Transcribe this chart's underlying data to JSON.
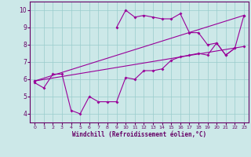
{
  "xlabel": "Windchill (Refroidissement éolien,°C)",
  "bg_color": "#cce8e8",
  "line_color": "#990099",
  "xlim": [
    -0.5,
    23.5
  ],
  "ylim": [
    3.5,
    10.5
  ],
  "xticks": [
    0,
    1,
    2,
    3,
    4,
    5,
    6,
    7,
    8,
    9,
    10,
    11,
    12,
    13,
    14,
    15,
    16,
    17,
    18,
    19,
    20,
    21,
    22,
    23
  ],
  "yticks": [
    4,
    5,
    6,
    7,
    8,
    9,
    10
  ],
  "series": [
    [
      5.8,
      5.5,
      6.3,
      6.3,
      4.2,
      4.0,
      5.0,
      4.7,
      4.7,
      4.7,
      6.1,
      6.0,
      6.5,
      6.5,
      6.6,
      7.1,
      7.3,
      7.4,
      7.5,
      7.4,
      8.1,
      7.4,
      7.8,
      null
    ],
    [
      null,
      null,
      null,
      null,
      null,
      null,
      null,
      null,
      null,
      9.0,
      10.0,
      9.6,
      9.7,
      9.6,
      9.5,
      9.5,
      9.8,
      8.7,
      8.7,
      8.0,
      8.1,
      7.4,
      7.8,
      9.7
    ],
    [
      5.8,
      null,
      null,
      6.3,
      null,
      null,
      null,
      null,
      null,
      null,
      null,
      null,
      null,
      null,
      null,
      null,
      null,
      null,
      null,
      null,
      null,
      null,
      null,
      9.7
    ],
    [
      5.8,
      null,
      null,
      6.3,
      null,
      null,
      null,
      null,
      null,
      null,
      null,
      null,
      null,
      null,
      null,
      null,
      null,
      null,
      null,
      null,
      null,
      null,
      null,
      7.9
    ]
  ]
}
